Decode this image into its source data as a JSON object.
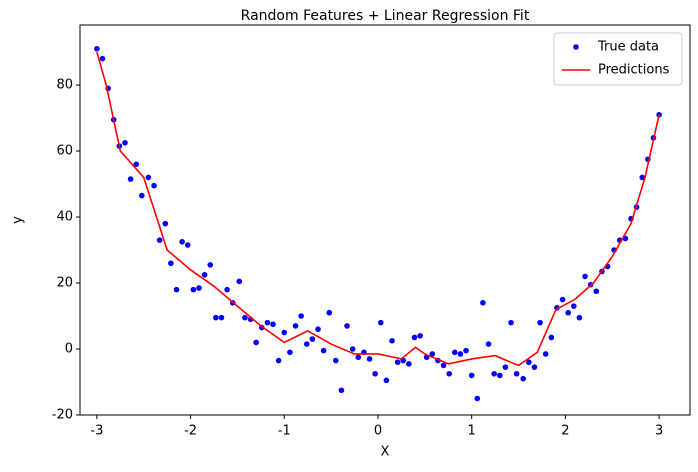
{
  "chart_data": {
    "type": "scatter-line",
    "title": "Random Features + Linear Regression Fit",
    "x_label": "X",
    "y_label": "y",
    "xlim": [
      -3.18,
      3.33
    ],
    "ylim": [
      -20,
      98.2
    ],
    "xticks": [
      -3,
      -2,
      -1,
      0,
      1,
      2,
      3
    ],
    "yticks": [
      -20,
      0,
      20,
      40,
      60,
      80
    ],
    "legend": "upper right",
    "series": [
      {
        "name": "True data",
        "color": "#0000ff",
        "style": "marker",
        "x": [
          -3.0,
          -2.94,
          -2.88,
          -2.82,
          -2.76,
          -2.7,
          -2.64,
          -2.58,
          -2.52,
          -2.45,
          -2.39,
          -2.33,
          -2.27,
          -2.21,
          -2.15,
          -2.09,
          -2.03,
          -1.97,
          -1.91,
          -1.85,
          -1.79,
          -1.73,
          -1.67,
          -1.61,
          -1.55,
          -1.48,
          -1.42,
          -1.36,
          -1.3,
          -1.24,
          -1.18,
          -1.12,
          -1.06,
          -1.0,
          -0.94,
          -0.88,
          -0.82,
          -0.76,
          -0.7,
          -0.64,
          -0.58,
          -0.52,
          -0.45,
          -0.39,
          -0.33,
          -0.27,
          -0.21,
          -0.15,
          -0.09,
          -0.03,
          0.03,
          0.09,
          0.15,
          0.21,
          0.27,
          0.33,
          0.39,
          0.45,
          0.52,
          0.58,
          0.64,
          0.7,
          0.76,
          0.82,
          0.88,
          0.94,
          1.0,
          1.06,
          1.12,
          1.18,
          1.24,
          1.3,
          1.36,
          1.42,
          1.48,
          1.55,
          1.61,
          1.67,
          1.73,
          1.79,
          1.85,
          1.91,
          1.97,
          2.03,
          2.09,
          2.15,
          2.21,
          2.27,
          2.33,
          2.39,
          2.45,
          2.52,
          2.58,
          2.64,
          2.7,
          2.76,
          2.82,
          2.88,
          2.94,
          3.0
        ],
        "values": [
          91,
          88,
          79,
          69.5,
          61.5,
          62.5,
          51.5,
          56,
          46.5,
          52,
          49.5,
          33,
          38,
          26,
          18,
          32.5,
          31.5,
          18,
          18.5,
          22.5,
          25.5,
          9.5,
          9.5,
          18,
          14,
          20.5,
          9.5,
          9,
          2,
          6.5,
          8,
          7.5,
          -3.5,
          5,
          -1,
          7,
          10,
          1.5,
          3,
          6,
          -0.5,
          11,
          -3.5,
          -12.5,
          7,
          0,
          -2.5,
          -1,
          -3,
          -7.5,
          8,
          -9.5,
          2.5,
          -4,
          -3.5,
          -4.5,
          3.5,
          4,
          -2.5,
          -1.5,
          -3.5,
          -5,
          -7.5,
          -1,
          -1.5,
          -0.5,
          -8,
          -15,
          14,
          1.5,
          -7.5,
          -8,
          -5.5,
          8,
          -7.5,
          -9,
          -4,
          -5.5,
          8,
          -1.5,
          3.5,
          12.5,
          15,
          11,
          13,
          9.5,
          22,
          19.5,
          17.5,
          23.5,
          25,
          30,
          33,
          33.5,
          39.5,
          43,
          52,
          57.5,
          64,
          71
        ]
      },
      {
        "name": "Predictions",
        "color": "#ff0000",
        "style": "line",
        "x": [
          -3,
          -2.9,
          -2.75,
          -2.5,
          -2.25,
          -2,
          -1.75,
          -1.5,
          -1.25,
          -1,
          -0.75,
          -0.5,
          -0.25,
          0,
          0.25,
          0.4,
          0.5,
          0.75,
          1,
          1.25,
          1.5,
          1.7,
          1.9,
          2.1,
          2.3,
          2.5,
          2.7,
          2.85,
          3
        ],
        "values": [
          90,
          80,
          60,
          52,
          30,
          24,
          19,
          13,
          7,
          2,
          5.5,
          1.5,
          -1.5,
          -1.5,
          -3,
          0.5,
          -1.5,
          -4.5,
          -3,
          -2,
          -5,
          -1,
          12,
          15,
          20,
          28,
          38,
          52,
          71
        ]
      }
    ]
  }
}
